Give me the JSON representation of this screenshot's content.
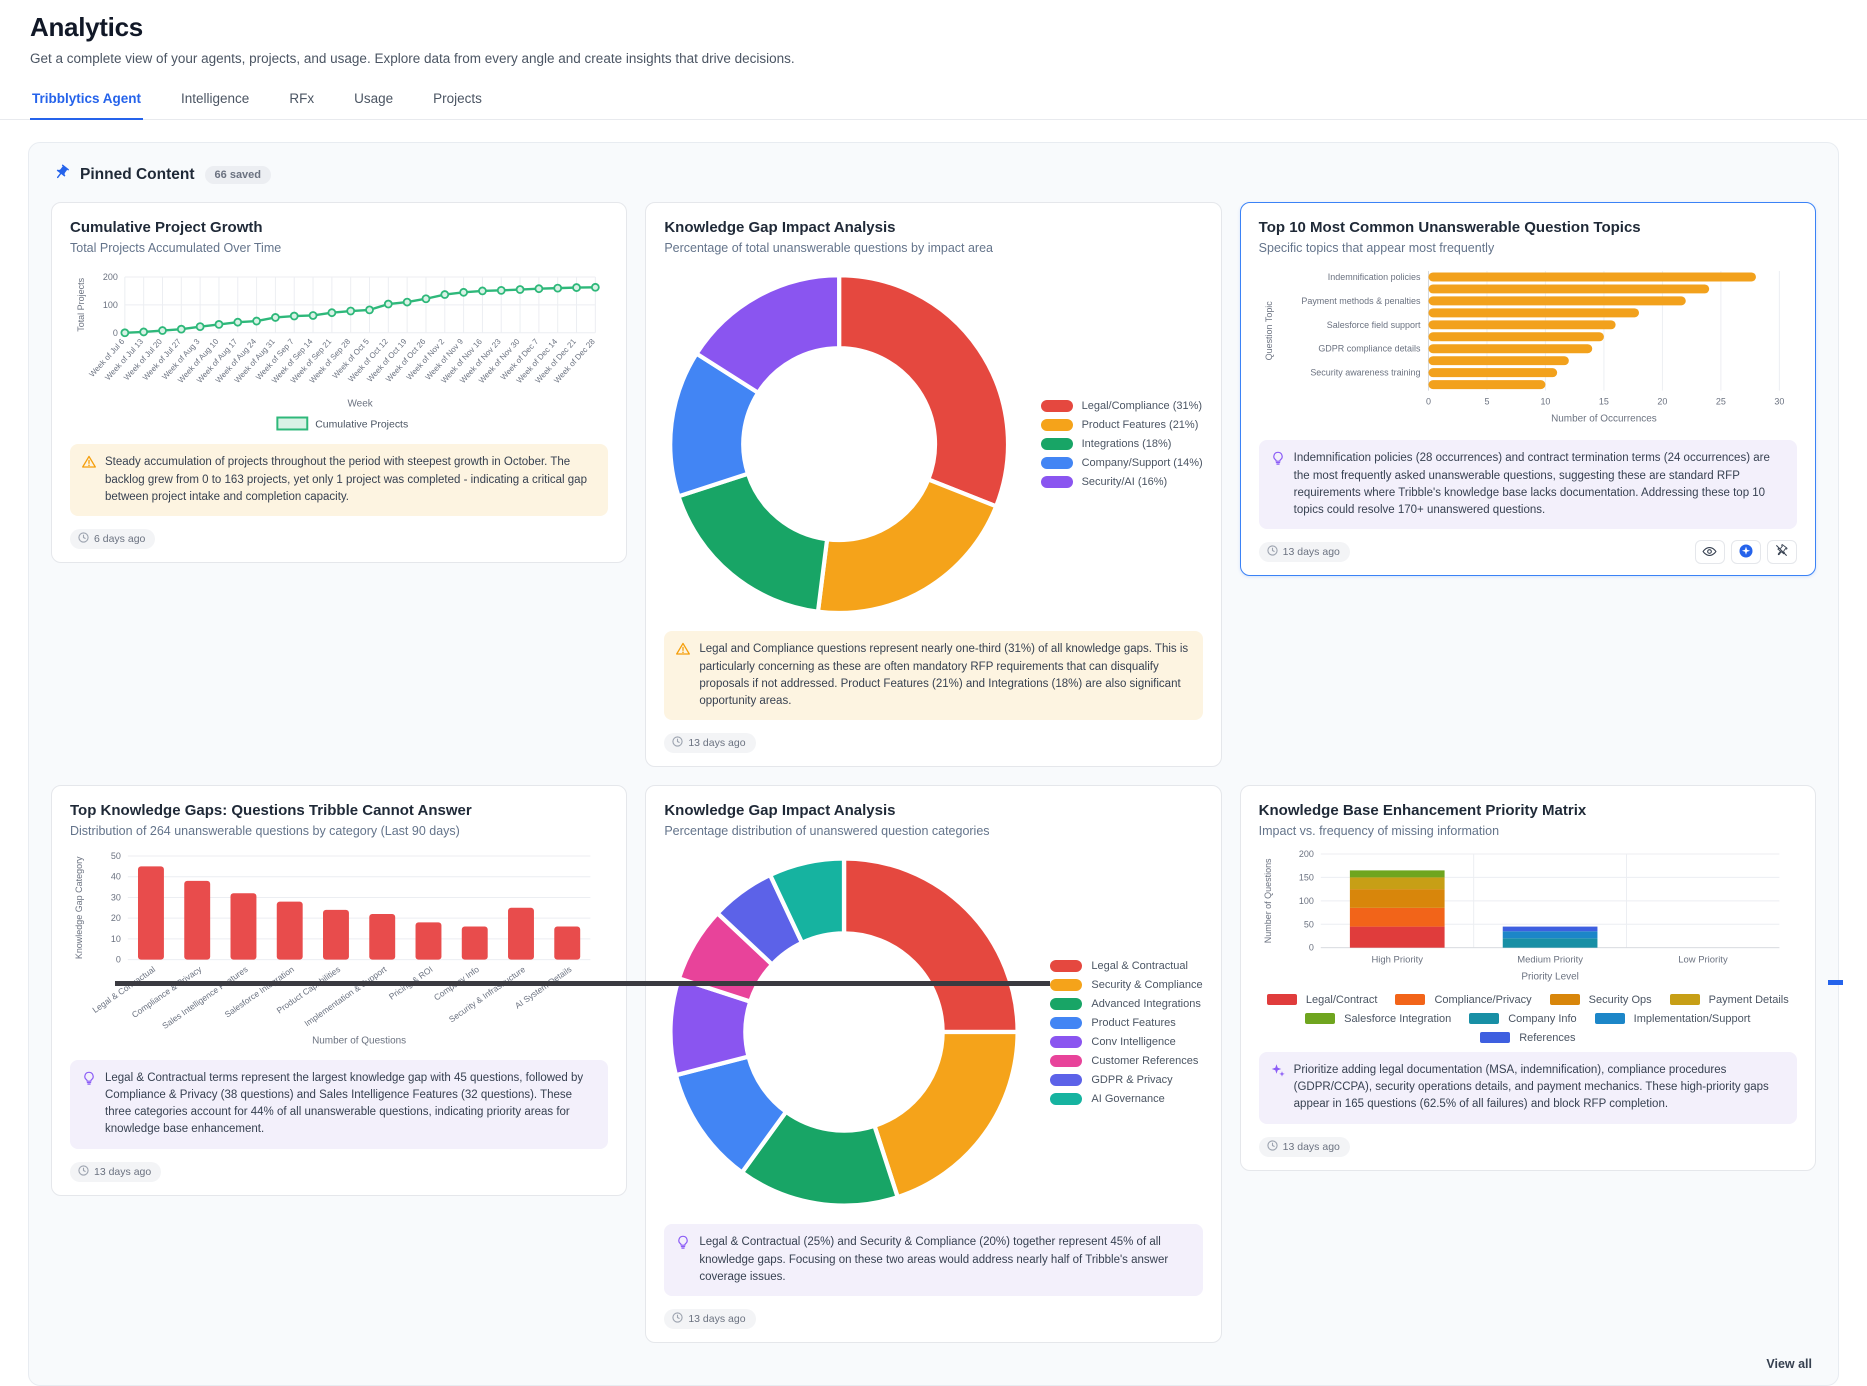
{
  "page": {
    "title": "Analytics",
    "subtitle": "Get a complete view of your agents, projects, and usage. Explore data from every angle and create insights that drive decisions."
  },
  "tabs": [
    {
      "label": "Tribblytics Agent",
      "active": true
    },
    {
      "label": "Intelligence",
      "active": false
    },
    {
      "label": "RFx",
      "active": false
    },
    {
      "label": "Usage",
      "active": false
    },
    {
      "label": "Projects",
      "active": false
    }
  ],
  "pinned": {
    "title": "Pinned Content",
    "badge": "66 saved",
    "view_all": "View all"
  },
  "cards": [
    {
      "title": "Cumulative Project Growth",
      "subtitle": "Total Projects Accumulated Over Time",
      "insight": {
        "icon": "warning",
        "text": "Steady accumulation of projects throughout the period with steepest growth in October. The backlog grew from 0 to 163 projects, yet only 1 project was completed - indicating a critical gap between project intake and completion capacity."
      },
      "timestamp": "6 days ago"
    },
    {
      "title": "Knowledge Gap Impact Analysis",
      "subtitle": "Percentage of total unanswerable questions by impact area",
      "insight": {
        "icon": "warning",
        "text": "Legal and Compliance questions represent nearly one-third (31%) of all knowledge gaps. This is particularly concerning as these are often mandatory RFP requirements that can disqualify proposals if not addressed. Product Features (21%) and Integrations (18%) are also significant opportunity areas."
      },
      "timestamp": "13 days ago"
    },
    {
      "title": "Top 10 Most Common Unanswerable Question Topics",
      "subtitle": "Specific topics that appear most frequently",
      "insight": {
        "icon": "lightbulb",
        "text": "Indemnification policies (28 occurrences) and contract termination terms (24 occurrences) are the most frequently asked unanswerable questions, suggesting these are standard RFP requirements where Tribble's knowledge base lacks documentation. Addressing these top 10 topics could resolve 170+ unanswered questions."
      },
      "timestamp": "13 days ago"
    },
    {
      "title": "Top Knowledge Gaps: Questions Tribble Cannot Answer",
      "subtitle": "Distribution of 264 unanswerable questions by category (Last 90 days)",
      "insight": {
        "icon": "lightbulb",
        "text": "Legal & Contractual terms represent the largest knowledge gap with 45 questions, followed by Compliance & Privacy (38 questions) and Sales Intelligence Features (32 questions). These three categories account for 44% of all unanswerable questions, indicating priority areas for knowledge base enhancement."
      },
      "timestamp": "13 days ago"
    },
    {
      "title": "Knowledge Gap Impact Analysis",
      "subtitle": "Percentage distribution of unanswered question categories",
      "insight": {
        "icon": "lightbulb",
        "text": "Legal & Contractual (25%) and Security & Compliance (20%) together represent 45% of all knowledge gaps. Focusing on these two areas would address nearly half of Tribble's answer coverage issues."
      },
      "timestamp": "13 days ago"
    },
    {
      "title": "Knowledge Base Enhancement Priority Matrix",
      "subtitle": "Impact vs. frequency of missing information",
      "insight": {
        "icon": "sparkle",
        "text": "Prioritize adding legal documentation (MSA, indemnification), compliance procedures (GDPR/CCPA), security operations details, and payment mechanics. These high-priority gaps appear in 165 questions (62.5% of all failures) and block RFP completion."
      },
      "timestamp": "13 days ago"
    }
  ],
  "chart_data": [
    {
      "type": "line",
      "title": "Cumulative Project Growth",
      "xlabel": "Week",
      "ylabel": "Total Projects",
      "ylim": [
        0,
        200
      ],
      "yticks": [
        0,
        100,
        200
      ],
      "legend": "Cumulative Projects",
      "color": "#2eb87a",
      "x": [
        "Week of Jul 6",
        "Week of Jul 13",
        "Week of Jul 20",
        "Week of Jul 27",
        "Week of Aug 3",
        "Week of Aug 10",
        "Week of Aug 17",
        "Week of Aug 24",
        "Week of Aug 31",
        "Week of Sep 7",
        "Week of Sep 14",
        "Week of Sep 21",
        "Week of Sep 28",
        "Week of Oct 5",
        "Week of Oct 12",
        "Week of Oct 19",
        "Week of Oct 26",
        "Week of Nov 2",
        "Week of Nov 9",
        "Week of Nov 16",
        "Week of Nov 23",
        "Week of Nov 30",
        "Week of Dec 7",
        "Week of Dec 14",
        "Week of Dec 21",
        "Week of Dec 28"
      ],
      "values": [
        0,
        3,
        8,
        13,
        22,
        30,
        38,
        42,
        55,
        60,
        62,
        72,
        78,
        82,
        103,
        110,
        122,
        137,
        145,
        150,
        152,
        155,
        158,
        160,
        162,
        163
      ]
    },
    {
      "type": "pie",
      "title": "Knowledge Gap Impact Analysis",
      "labels": [
        "Legal/Compliance (31%)",
        "Product Features (21%)",
        "Integrations (18%)",
        "Company/Support (14%)",
        "Security/AI (16%)"
      ],
      "values": [
        31,
        21,
        18,
        14,
        16
      ],
      "colors": [
        "#e5483f",
        "#f5a31a",
        "#18a566",
        "#4285f4",
        "#8a55f0"
      ],
      "legend_position": "right"
    },
    {
      "type": "bar",
      "orientation": "horizontal",
      "title": "Top 10 Most Common Unanswerable Question Topics",
      "categories": [
        "Indemnification policies",
        "",
        "Payment methods & penalties",
        "",
        "Salesforce field support",
        "",
        "GDPR compliance details",
        "",
        "Security awareness training",
        ""
      ],
      "values": [
        28,
        24,
        22,
        18,
        16,
        15,
        14,
        12,
        11,
        10
      ],
      "xlabel": "Number of Occurrences",
      "ylabel": "Question Topic",
      "xlim": [
        0,
        30
      ],
      "xticks": [
        0,
        5,
        10,
        15,
        20,
        25,
        30
      ],
      "color": "#f2a11c"
    },
    {
      "type": "bar",
      "title": "Top Knowledge Gaps: Questions Tribble Cannot Answer",
      "categories": [
        "Legal & Contractual",
        "Compliance & Privacy",
        "Sales Intelligence Features",
        "Salesforce Integration",
        "Product Capabilities",
        "Implementation & Support",
        "Pricing & ROI",
        "Company Info",
        "Security & Infrastructure",
        "AI System Details"
      ],
      "values": [
        45,
        38,
        32,
        28,
        24,
        22,
        18,
        16,
        25,
        16
      ],
      "xlabel": "Number of Questions",
      "ylabel": "Knowledge Gap Category",
      "ylim": [
        0,
        50
      ],
      "yticks": [
        0,
        10,
        20,
        30,
        40,
        50
      ],
      "color": "#e84c4c"
    },
    {
      "type": "pie",
      "title": "Knowledge Gap Impact Analysis",
      "labels": [
        "Legal & Contractual",
        "Security & Compliance",
        "Advanced Integrations",
        "Product Features",
        "Conv Intelligence",
        "Customer References",
        "GDPR & Privacy",
        "AI Governance"
      ],
      "values": [
        25,
        20,
        15,
        11,
        9,
        7,
        6,
        7
      ],
      "colors": [
        "#e5483f",
        "#f5a31a",
        "#18a566",
        "#4285f4",
        "#8a55f0",
        "#e8439a",
        "#5c62e8",
        "#16b3a0"
      ],
      "legend_position": "right"
    },
    {
      "type": "bar",
      "stacked": true,
      "title": "Knowledge Base Enhancement Priority Matrix",
      "categories": [
        "High Priority",
        "Medium Priority",
        "Low Priority"
      ],
      "series": [
        {
          "name": "Legal/Contract",
          "color": "#e03c3c",
          "values": [
            45,
            0,
            0
          ]
        },
        {
          "name": "Compliance/Privacy",
          "color": "#f26419",
          "values": [
            40,
            0,
            0
          ]
        },
        {
          "name": "Security Ops",
          "color": "#d8860b",
          "values": [
            40,
            0,
            0
          ]
        },
        {
          "name": "Payment Details",
          "color": "#c79f16",
          "values": [
            25,
            0,
            0
          ]
        },
        {
          "name": "Salesforce Integration",
          "color": "#6fa51f",
          "values": [
            15,
            0,
            0
          ]
        },
        {
          "name": "Company Info",
          "color": "#188fa5",
          "values": [
            0,
            20,
            0
          ]
        },
        {
          "name": "Implementation/Support",
          "color": "#1c86c8",
          "values": [
            0,
            15,
            0
          ]
        },
        {
          "name": "References",
          "color": "#3e5fe0",
          "values": [
            0,
            10,
            0
          ]
        }
      ],
      "xlabel": "Priority Level",
      "ylabel": "Number of Questions",
      "ylim": [
        0,
        200
      ],
      "yticks": [
        0,
        50,
        100,
        150,
        200
      ]
    }
  ]
}
